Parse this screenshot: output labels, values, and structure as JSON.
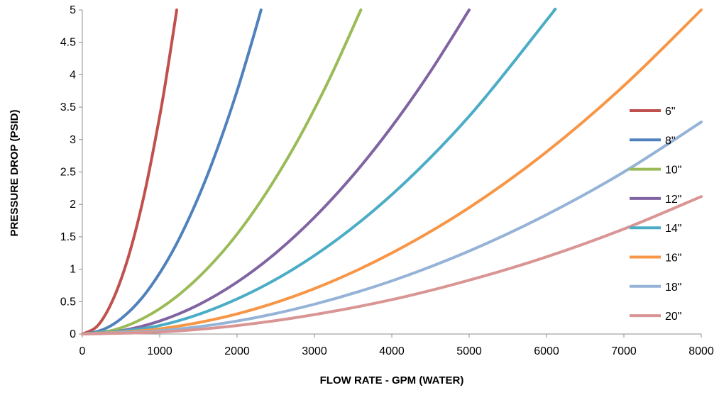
{
  "chart_data": {
    "type": "line",
    "title": "",
    "xlabel": "FLOW RATE - GPM (WATER)",
    "ylabel": "PRESSURE DROP (PSID)",
    "xlim": [
      0,
      8000
    ],
    "ylim": [
      0,
      5
    ],
    "x_ticks": [
      0,
      1000,
      2000,
      3000,
      4000,
      5000,
      6000,
      7000,
      8000
    ],
    "x_tick_labels": [
      "0",
      "1000",
      "2000",
      "3000",
      "4000",
      "5000",
      "6000",
      "7000",
      "8000"
    ],
    "y_ticks": [
      0,
      0.5,
      1,
      1.5,
      2,
      2.5,
      3,
      3.5,
      4,
      4.5,
      5
    ],
    "y_tick_labels": [
      "0",
      "0.5",
      "1",
      "1.5",
      "2",
      "2.5",
      "3",
      "3.5",
      "4",
      "4.5",
      "5"
    ],
    "grid": false,
    "legend_position": "right",
    "series": [
      {
        "name": "6\"",
        "color": "#C0504D",
        "x": [
          0,
          200,
          400,
          600,
          800,
          1000,
          1100,
          1200,
          1220
        ],
        "y": [
          0,
          0.13,
          0.54,
          1.21,
          2.15,
          3.36,
          4.07,
          4.84,
          5.0
        ]
      },
      {
        "name": "8\"",
        "color": "#4F81BD",
        "x": [
          0,
          200,
          400,
          600,
          800,
          1000,
          1200,
          1400,
          1600,
          1800,
          2000,
          2200,
          2310
        ],
        "y": [
          0,
          0.04,
          0.15,
          0.34,
          0.6,
          0.94,
          1.35,
          1.84,
          2.4,
          3.04,
          3.75,
          4.54,
          5.0
        ]
      },
      {
        "name": "10\"",
        "color": "#9BBB59",
        "x": [
          0,
          400,
          800,
          1200,
          1600,
          2000,
          2400,
          2800,
          3200,
          3600
        ],
        "y": [
          0,
          0.06,
          0.25,
          0.56,
          0.99,
          1.54,
          2.22,
          3.02,
          3.95,
          5.0
        ]
      },
      {
        "name": "12\"",
        "color": "#8064A2",
        "x": [
          0,
          500,
          1000,
          1500,
          2000,
          2500,
          3000,
          3500,
          4000,
          4500,
          5000
        ],
        "y": [
          0,
          0.05,
          0.2,
          0.45,
          0.8,
          1.25,
          1.8,
          2.45,
          3.2,
          4.05,
          5.0
        ]
      },
      {
        "name": "14\"",
        "color": "#4BACC6",
        "x": [
          0,
          1000,
          2000,
          3000,
          4000,
          5000,
          6000,
          6100
        ],
        "y": [
          0,
          0.13,
          0.54,
          1.21,
          2.15,
          3.36,
          4.84,
          5.0
        ]
      },
      {
        "name": "16\"",
        "color": "#F79646",
        "x": [
          0,
          1000,
          2000,
          3000,
          4000,
          5000,
          6000,
          7000,
          8000
        ],
        "y": [
          0,
          0.08,
          0.31,
          0.7,
          1.25,
          1.95,
          2.81,
          3.83,
          5.0
        ]
      },
      {
        "name": "18\"",
        "color": "#95B3D7",
        "x": [
          0,
          1000,
          2000,
          3000,
          4000,
          5000,
          6000,
          7000,
          8000
        ],
        "y": [
          0,
          0.05,
          0.2,
          0.46,
          0.82,
          1.28,
          1.84,
          2.5,
          3.27
        ]
      },
      {
        "name": "20\"",
        "color": "#D99594",
        "x": [
          0,
          1000,
          2000,
          3000,
          4000,
          5000,
          6000,
          7000,
          8000
        ],
        "y": [
          0,
          0.03,
          0.13,
          0.3,
          0.53,
          0.83,
          1.19,
          1.62,
          2.12
        ]
      }
    ]
  }
}
